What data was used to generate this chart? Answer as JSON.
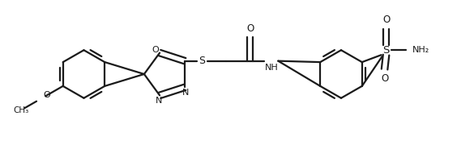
{
  "background": "#ffffff",
  "line_color": "#1a1a1a",
  "line_width": 1.6,
  "figsize": [
    5.85,
    1.8
  ],
  "dpi": 100,
  "xlim": [
    0,
    5.85
  ],
  "ylim": [
    0,
    1.8
  ]
}
